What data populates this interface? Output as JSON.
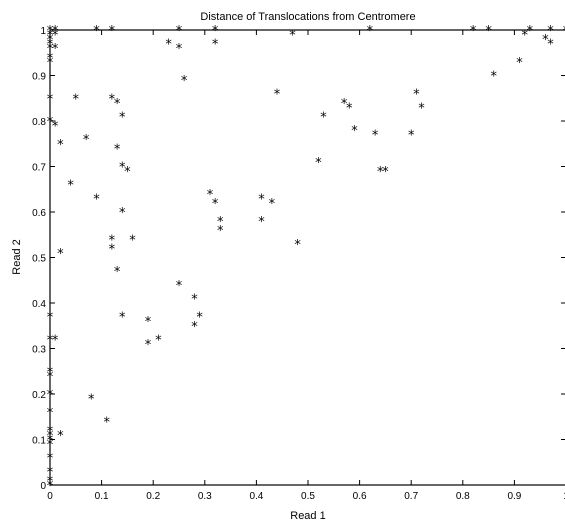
{
  "chart_data": {
    "type": "scatter",
    "title": "Distance of Translocations from Centromere",
    "xlabel": "Read 1",
    "ylabel": "Read 2",
    "xlim": [
      0,
      1
    ],
    "ylim": [
      0,
      1
    ],
    "xticks": [
      "0",
      "0.1",
      "0.2",
      "0.3",
      "0.4",
      "0.5",
      "0.6",
      "0.7",
      "0.8",
      "0.9",
      "1"
    ],
    "yticks": [
      "0",
      "0.1",
      "0.2",
      "0.3",
      "0.4",
      "0.5",
      "0.6",
      "0.7",
      "0.8",
      "0.9",
      "1"
    ],
    "marker": "*",
    "grid": false,
    "points": [
      [
        0.0,
        0.0
      ],
      [
        0.0,
        0.01
      ],
      [
        0.0,
        0.03
      ],
      [
        0.0,
        0.06
      ],
      [
        0.0,
        0.09
      ],
      [
        0.0,
        0.1
      ],
      [
        0.0,
        0.11
      ],
      [
        0.0,
        0.12
      ],
      [
        0.0,
        0.16
      ],
      [
        0.0,
        0.2
      ],
      [
        0.0,
        0.24
      ],
      [
        0.0,
        0.25
      ],
      [
        0.0,
        0.32
      ],
      [
        0.0,
        0.37
      ],
      [
        0.0,
        0.8
      ],
      [
        0.0,
        0.85
      ],
      [
        0.0,
        0.93
      ],
      [
        0.0,
        0.94
      ],
      [
        0.0,
        0.96
      ],
      [
        0.0,
        0.97
      ],
      [
        0.0,
        0.98
      ],
      [
        0.0,
        0.99
      ],
      [
        0.0,
        1.0
      ],
      [
        0.01,
        0.32
      ],
      [
        0.01,
        0.79
      ],
      [
        0.01,
        0.96
      ],
      [
        0.01,
        0.99
      ],
      [
        0.01,
        1.0
      ],
      [
        0.02,
        0.11
      ],
      [
        0.02,
        0.51
      ],
      [
        0.02,
        0.75
      ],
      [
        0.04,
        0.66
      ],
      [
        0.05,
        0.85
      ],
      [
        0.07,
        0.76
      ],
      [
        0.08,
        0.19
      ],
      [
        0.09,
        0.63
      ],
      [
        0.09,
        1.0
      ],
      [
        0.11,
        0.14
      ],
      [
        0.12,
        0.85
      ],
      [
        0.12,
        0.52
      ],
      [
        0.12,
        0.54
      ],
      [
        0.12,
        1.0
      ],
      [
        0.13,
        0.84
      ],
      [
        0.13,
        0.47
      ],
      [
        0.13,
        0.74
      ],
      [
        0.14,
        0.81
      ],
      [
        0.14,
        0.7
      ],
      [
        0.14,
        0.6
      ],
      [
        0.14,
        0.37
      ],
      [
        0.15,
        0.69
      ],
      [
        0.16,
        0.54
      ],
      [
        0.19,
        0.36
      ],
      [
        0.19,
        0.31
      ],
      [
        0.21,
        0.32
      ],
      [
        0.23,
        0.97
      ],
      [
        0.25,
        1.0
      ],
      [
        0.25,
        0.96
      ],
      [
        0.25,
        0.44
      ],
      [
        0.26,
        0.89
      ],
      [
        0.28,
        0.41
      ],
      [
        0.28,
        0.35
      ],
      [
        0.29,
        0.37
      ],
      [
        0.31,
        0.64
      ],
      [
        0.32,
        0.62
      ],
      [
        0.32,
        0.97
      ],
      [
        0.32,
        1.0
      ],
      [
        0.33,
        0.58
      ],
      [
        0.33,
        0.56
      ],
      [
        0.41,
        0.63
      ],
      [
        0.41,
        0.58
      ],
      [
        0.43,
        0.62
      ],
      [
        0.44,
        0.86
      ],
      [
        0.47,
        0.99
      ],
      [
        0.48,
        0.53
      ],
      [
        0.52,
        0.71
      ],
      [
        0.53,
        0.81
      ],
      [
        0.57,
        0.84
      ],
      [
        0.58,
        0.83
      ],
      [
        0.59,
        0.78
      ],
      [
        0.62,
        1.0
      ],
      [
        0.63,
        0.77
      ],
      [
        0.64,
        0.69
      ],
      [
        0.65,
        0.69
      ],
      [
        0.7,
        0.77
      ],
      [
        0.71,
        0.86
      ],
      [
        0.72,
        0.83
      ],
      [
        0.82,
        1.0
      ],
      [
        0.85,
        1.0
      ],
      [
        0.86,
        0.9
      ],
      [
        0.91,
        0.93
      ],
      [
        0.92,
        0.99
      ],
      [
        0.93,
        1.0
      ],
      [
        0.96,
        0.98
      ],
      [
        0.97,
        0.97
      ],
      [
        0.97,
        1.0
      ],
      [
        1.0,
        1.0
      ]
    ]
  }
}
